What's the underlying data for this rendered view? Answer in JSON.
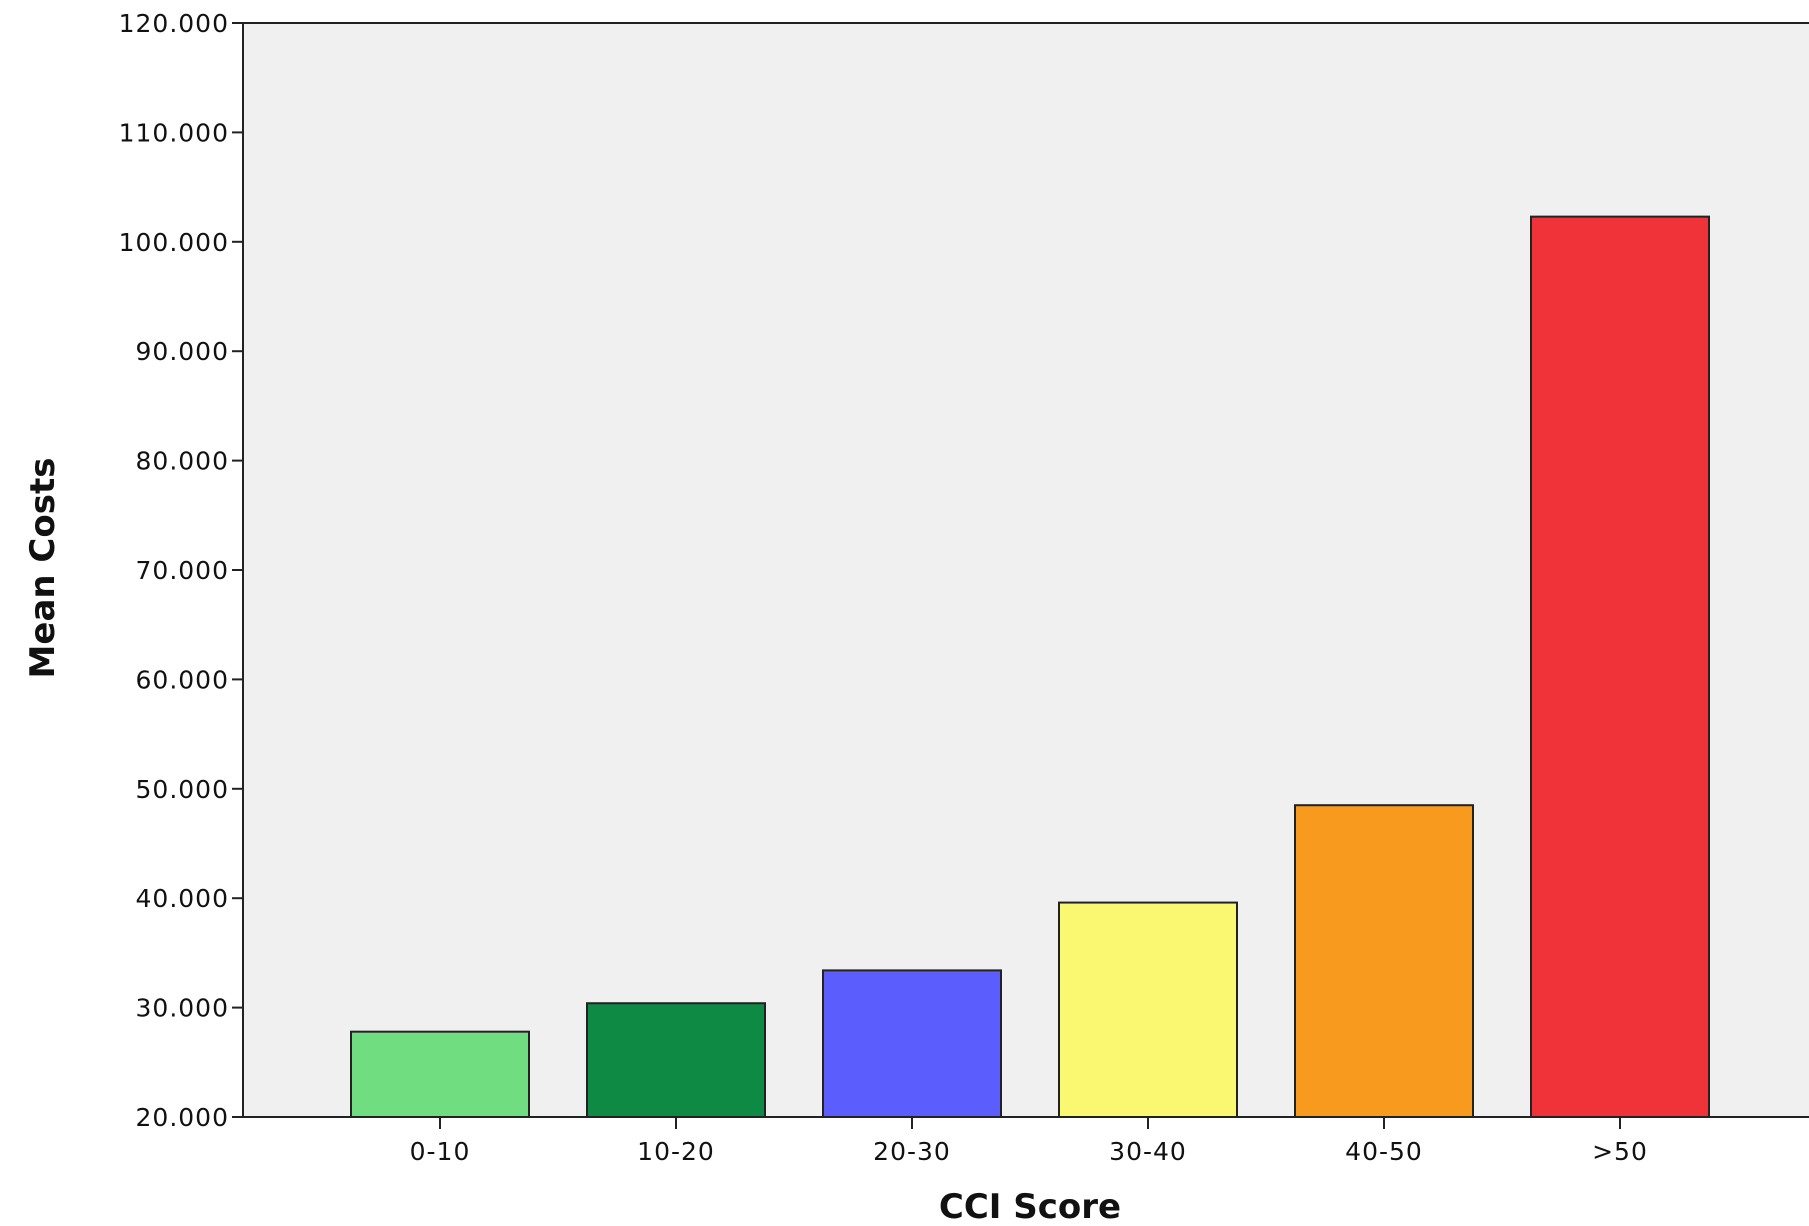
{
  "chart_data": {
    "type": "bar",
    "title": "",
    "xlabel": "CCI Score",
    "ylabel": "Mean Costs",
    "categories": [
      "0-10",
      "10-20",
      "20-30",
      "30-40",
      "40-50",
      ">50"
    ],
    "values": [
      27800,
      30400,
      33400,
      39600,
      48500,
      102300
    ],
    "y_ticks": [
      20000,
      30000,
      40000,
      50000,
      60000,
      70000,
      80000,
      90000,
      100000,
      110000,
      120000
    ],
    "y_tick_labels": [
      "20.000",
      "30.000",
      "40.000",
      "50.000",
      "60.000",
      "70.000",
      "80.000",
      "90.000",
      "100.000",
      "110.000",
      "120.000"
    ],
    "ylim": [
      20000,
      120000
    ],
    "grid": false,
    "legend": "none",
    "colors": [
      "#70DD80",
      "#0E8A45",
      "#5B5DFD",
      "#FAF771",
      "#F79A1E",
      "#F03339"
    ],
    "plot_background": "#F0F0F0",
    "bar_edge_color": "#222222"
  }
}
